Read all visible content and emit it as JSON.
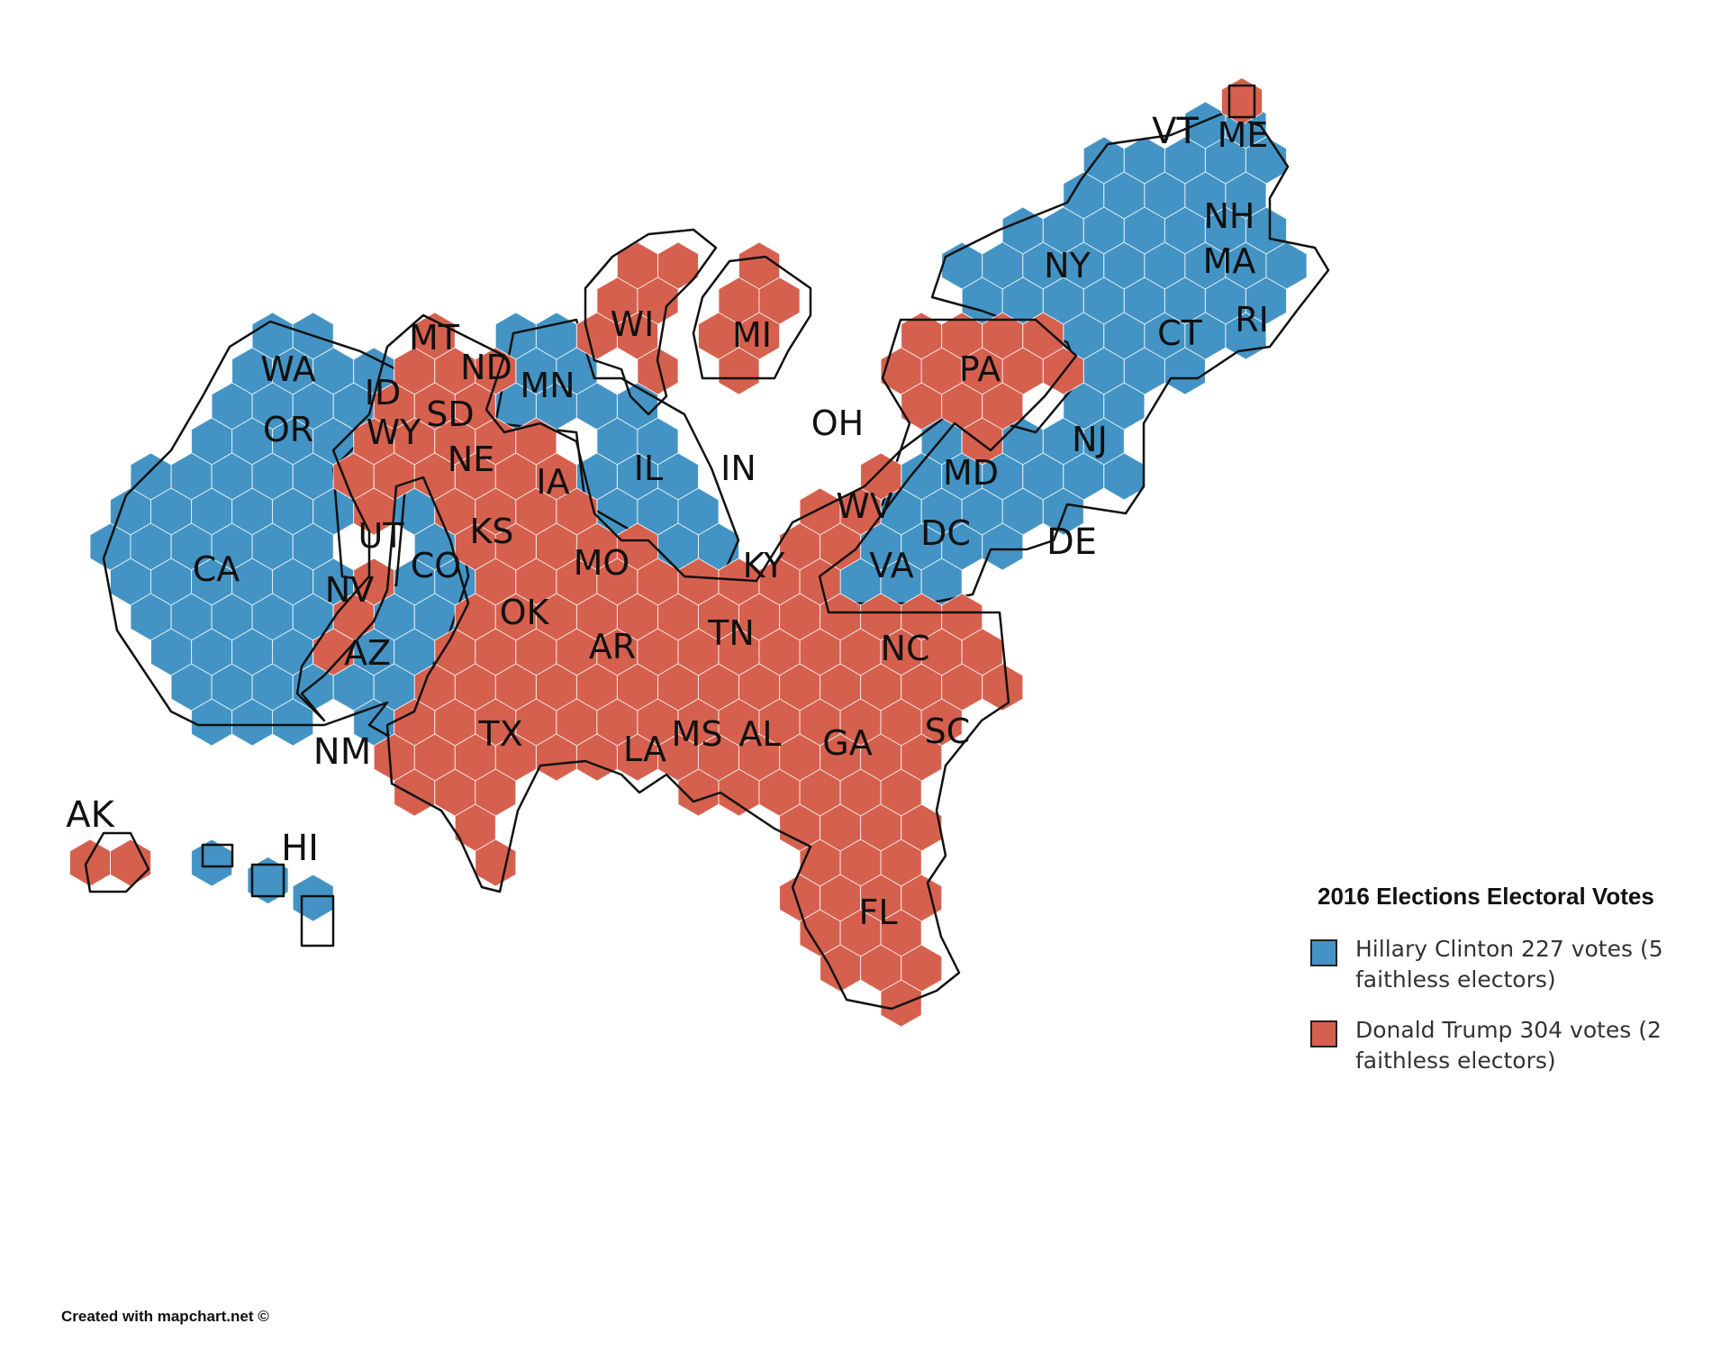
{
  "colors": {
    "clinton": "#4394c5",
    "trump": "#d6604e"
  },
  "legend": {
    "title": "2016 Elections Electoral Votes",
    "entries": [
      {
        "key": "clinton",
        "label": "Hillary Clinton 227 votes (5 faithless electors)"
      },
      {
        "key": "trump",
        "label": "Donald Trump 304 votes (2 faithless electors)"
      }
    ]
  },
  "credit": "Created with mapchart.net ©",
  "states": [
    {
      "abbr": "WA",
      "winner": "clinton"
    },
    {
      "abbr": "OR",
      "winner": "clinton"
    },
    {
      "abbr": "CA",
      "winner": "clinton"
    },
    {
      "abbr": "NV",
      "winner": "clinton"
    },
    {
      "abbr": "CO",
      "winner": "clinton"
    },
    {
      "abbr": "NM",
      "winner": "clinton"
    },
    {
      "abbr": "MN",
      "winner": "clinton"
    },
    {
      "abbr": "IL",
      "winner": "clinton"
    },
    {
      "abbr": "VA",
      "winner": "clinton"
    },
    {
      "abbr": "MD",
      "winner": "clinton"
    },
    {
      "abbr": "DC",
      "winner": "clinton"
    },
    {
      "abbr": "DE",
      "winner": "clinton"
    },
    {
      "abbr": "NJ",
      "winner": "clinton"
    },
    {
      "abbr": "NY",
      "winner": "clinton"
    },
    {
      "abbr": "CT",
      "winner": "clinton"
    },
    {
      "abbr": "RI",
      "winner": "clinton"
    },
    {
      "abbr": "MA",
      "winner": "clinton"
    },
    {
      "abbr": "NH",
      "winner": "clinton"
    },
    {
      "abbr": "VT",
      "winner": "clinton"
    },
    {
      "abbr": "ME",
      "winner": "clinton"
    },
    {
      "abbr": "HI",
      "winner": "clinton"
    },
    {
      "abbr": "MT",
      "winner": "trump"
    },
    {
      "abbr": "ND",
      "winner": "trump"
    },
    {
      "abbr": "ID",
      "winner": "trump"
    },
    {
      "abbr": "SD",
      "winner": "trump"
    },
    {
      "abbr": "WY",
      "winner": "trump"
    },
    {
      "abbr": "NE",
      "winner": "trump"
    },
    {
      "abbr": "UT",
      "winner": "trump"
    },
    {
      "abbr": "AZ",
      "winner": "trump"
    },
    {
      "abbr": "KS",
      "winner": "trump"
    },
    {
      "abbr": "IA",
      "winner": "trump"
    },
    {
      "abbr": "MO",
      "winner": "trump"
    },
    {
      "abbr": "OK",
      "winner": "trump"
    },
    {
      "abbr": "TX",
      "winner": "trump"
    },
    {
      "abbr": "AR",
      "winner": "trump"
    },
    {
      "abbr": "LA",
      "winner": "trump"
    },
    {
      "abbr": "MS",
      "winner": "trump"
    },
    {
      "abbr": "AL",
      "winner": "trump"
    },
    {
      "abbr": "TN",
      "winner": "trump"
    },
    {
      "abbr": "KY",
      "winner": "trump"
    },
    {
      "abbr": "IN",
      "winner": "trump"
    },
    {
      "abbr": "OH",
      "winner": "trump"
    },
    {
      "abbr": "WV",
      "winner": "trump"
    },
    {
      "abbr": "WI",
      "winner": "trump"
    },
    {
      "abbr": "MI",
      "winner": "trump"
    },
    {
      "abbr": "PA",
      "winner": "trump"
    },
    {
      "abbr": "NC",
      "winner": "trump"
    },
    {
      "abbr": "SC",
      "winner": "trump"
    },
    {
      "abbr": "GA",
      "winner": "trump"
    },
    {
      "abbr": "FL",
      "winner": "trump"
    },
    {
      "abbr": "AK",
      "winner": "trump"
    }
  ]
}
